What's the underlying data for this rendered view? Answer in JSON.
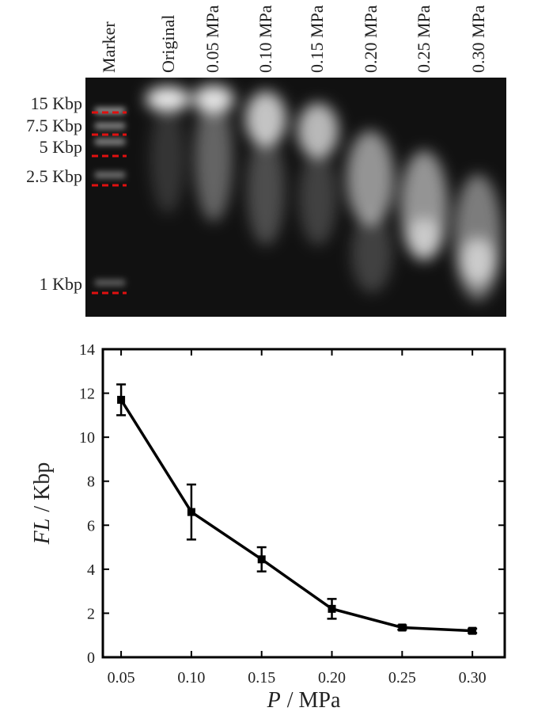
{
  "gel": {
    "lanes": [
      "Marker",
      "Original",
      "0.05 MPa",
      "0.10 MPa",
      "0.15 MPa",
      "0.20 MPa",
      "0.25 MPa",
      "0.30 MPa"
    ],
    "marker_bands": [
      "15 Kbp",
      "7.5 Kbp",
      "5 Kbp",
      "2.5 Kbp",
      "1 Kbp"
    ]
  },
  "chart_data": {
    "type": "line",
    "y_label_var": "FL",
    "y_label_unit": "/ Kbp",
    "x_label_var": "P",
    "x_label_unit": "/ MPa",
    "x": [
      0.05,
      0.1,
      0.15,
      0.2,
      0.25,
      0.3
    ],
    "series": [
      {
        "name": "FL",
        "color": "#000000",
        "values": [
          11.7,
          6.6,
          4.45,
          2.2,
          1.35,
          1.2
        ],
        "errors": [
          0.7,
          1.25,
          0.55,
          0.45,
          0.1,
          0.1
        ]
      }
    ],
    "xlim": [
      0.037,
      0.323
    ],
    "ylim": [
      0,
      14
    ],
    "xticks": [
      0.05,
      {
        "value": 0.1,
        "label": "0.10"
      },
      0.15,
      {
        "value": 0.2,
        "label": "0.20"
      },
      0.25,
      {
        "value": 0.3,
        "label": "0.30"
      }
    ],
    "yticks": [
      0,
      2,
      4,
      6,
      8,
      10,
      12,
      14
    ]
  }
}
